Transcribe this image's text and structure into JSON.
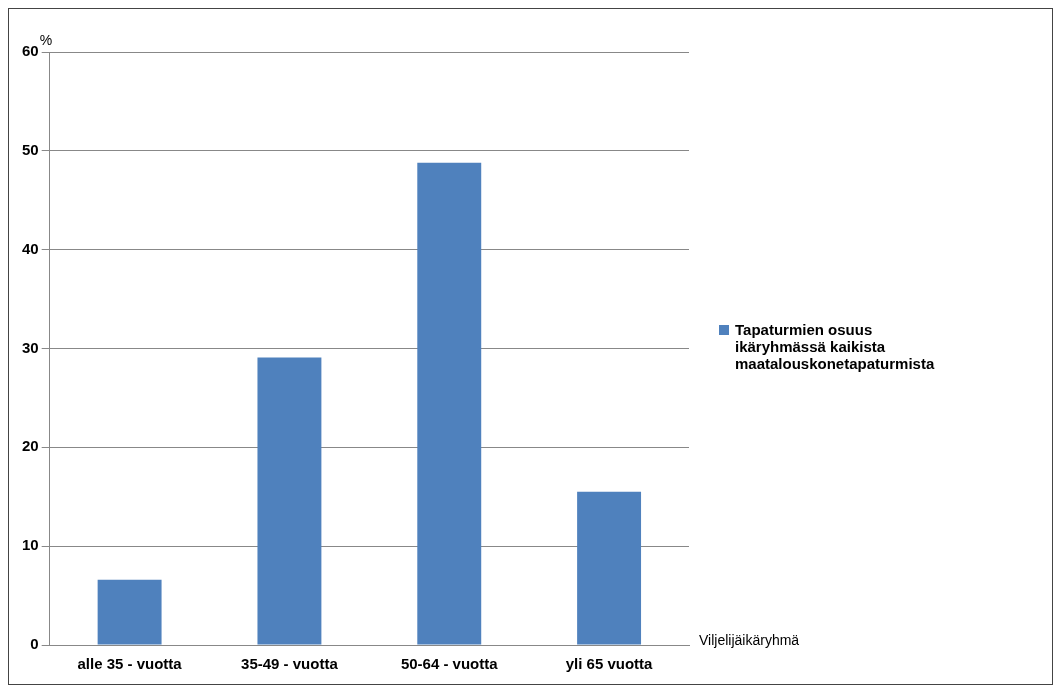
{
  "chart_data": {
    "type": "bar",
    "categories": [
      "alle 35 - vuotta",
      "35-49 - vuotta",
      "50-64 - vuotta",
      "yli 65 vuotta"
    ],
    "series": [
      {
        "name": "Tapaturmien osuus ikäryhmässä kaikista maatalouskonetapaturmista",
        "color": "#4f81bd",
        "values": [
          6.6,
          29.1,
          48.8,
          15.5
        ]
      }
    ],
    "xlabel": "Viljelijäikäryhmä",
    "ylabel": "%",
    "ylim": [
      0,
      60
    ],
    "yticks": [
      0,
      10,
      20,
      30,
      40,
      50,
      60
    ],
    "grid": "y",
    "legend": "right"
  }
}
